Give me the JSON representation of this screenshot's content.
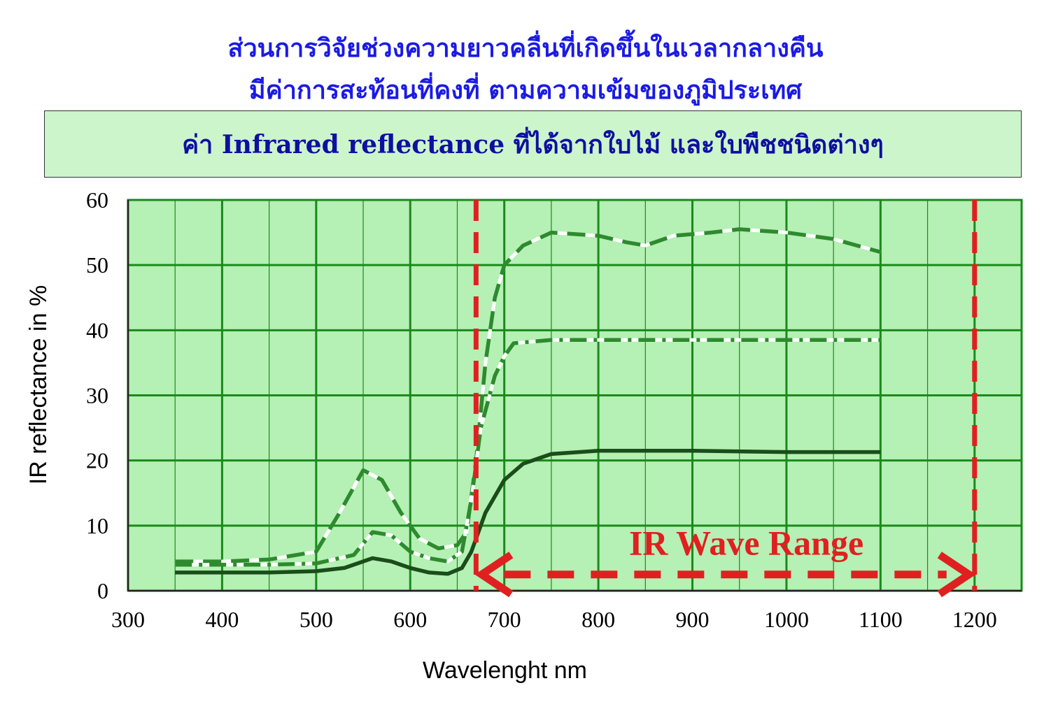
{
  "header": {
    "title_line1": "ส่วนการวิจัยช่วงความยาวคลื่นที่เกิดขึ้นในเวลากลางคืน",
    "title_line2": "มีค่าการสะท้อนที่คงที่ ตามความเข้มของภูมิประเทศ",
    "box_title": "ค่า Infrared reflectance ที่ได้จากใบไม้ และใบพืชชนิดต่างๆ"
  },
  "chart_data": {
    "type": "line",
    "xlabel": "Wavelenght nm",
    "ylabel": "IR reflectance in %",
    "xlim": [
      300,
      1250
    ],
    "ylim": [
      0,
      60
    ],
    "xticks": [
      300,
      400,
      500,
      600,
      700,
      800,
      900,
      1000,
      1100,
      1200
    ],
    "yticks": [
      0,
      10,
      20,
      30,
      40,
      50,
      60
    ],
    "grid": true,
    "background_color": "#b5f0b5",
    "grid_color": "#1a8a1a",
    "series": [
      {
        "style": "dashed",
        "color": "#2e8a2e",
        "points": [
          [
            350,
            4.5
          ],
          [
            400,
            4.5
          ],
          [
            450,
            4.8
          ],
          [
            500,
            6
          ],
          [
            525,
            12
          ],
          [
            550,
            18.5
          ],
          [
            570,
            17
          ],
          [
            590,
            12
          ],
          [
            610,
            8
          ],
          [
            630,
            6.5
          ],
          [
            650,
            7
          ],
          [
            660,
            9
          ],
          [
            670,
            20
          ],
          [
            680,
            35
          ],
          [
            690,
            45
          ],
          [
            700,
            50
          ],
          [
            720,
            53
          ],
          [
            750,
            55
          ],
          [
            800,
            54.5
          ],
          [
            830,
            53.5
          ],
          [
            850,
            53
          ],
          [
            880,
            54.5
          ],
          [
            920,
            55
          ],
          [
            950,
            55.5
          ],
          [
            1000,
            55
          ],
          [
            1050,
            54
          ],
          [
            1100,
            52
          ]
        ]
      },
      {
        "style": "dash-dot",
        "color": "#2e8a2e",
        "points": [
          [
            350,
            4
          ],
          [
            400,
            4
          ],
          [
            450,
            4
          ],
          [
            500,
            4.2
          ],
          [
            540,
            5.5
          ],
          [
            560,
            9
          ],
          [
            580,
            8.5
          ],
          [
            600,
            6
          ],
          [
            620,
            5
          ],
          [
            640,
            4.5
          ],
          [
            655,
            6
          ],
          [
            665,
            14
          ],
          [
            675,
            25
          ],
          [
            690,
            33
          ],
          [
            700,
            36
          ],
          [
            710,
            38
          ],
          [
            750,
            38.5
          ],
          [
            800,
            38.5
          ],
          [
            900,
            38.5
          ],
          [
            1000,
            38.5
          ],
          [
            1100,
            38.5
          ]
        ]
      },
      {
        "style": "solid",
        "color": "#1a4d1a",
        "points": [
          [
            350,
            2.8
          ],
          [
            400,
            2.8
          ],
          [
            450,
            2.8
          ],
          [
            500,
            3
          ],
          [
            530,
            3.5
          ],
          [
            560,
            5
          ],
          [
            580,
            4.5
          ],
          [
            600,
            3.5
          ],
          [
            620,
            2.8
          ],
          [
            640,
            2.6
          ],
          [
            655,
            3.5
          ],
          [
            665,
            6
          ],
          [
            680,
            12
          ],
          [
            700,
            17
          ],
          [
            720,
            19.5
          ],
          [
            750,
            21
          ],
          [
            800,
            21.5
          ],
          [
            900,
            21.5
          ],
          [
            1000,
            21.3
          ],
          [
            1100,
            21.3
          ]
        ]
      }
    ],
    "ir_band": {
      "label": "IR Wave Range",
      "x_start": 670,
      "x_end": 1200,
      "arrow_y": 2.5,
      "color": "#e02020"
    }
  }
}
